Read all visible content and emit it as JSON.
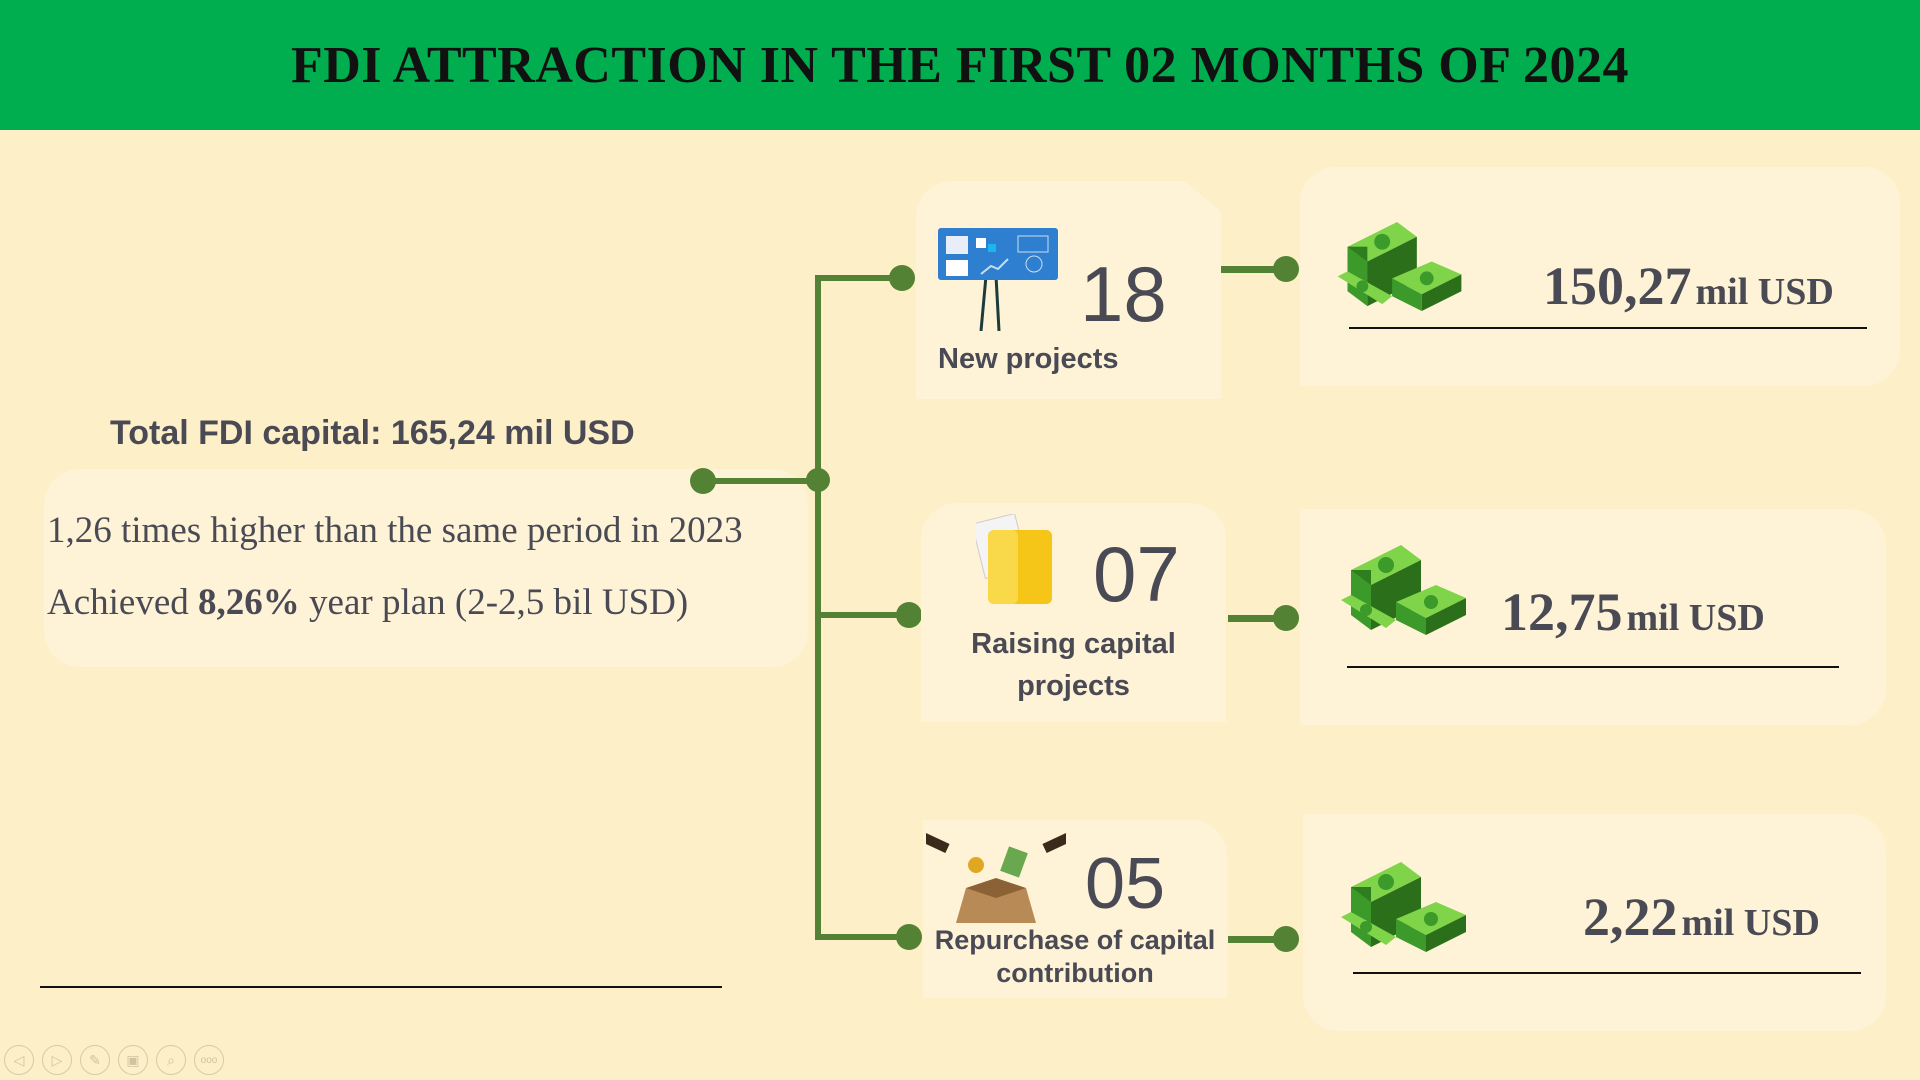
{
  "header": {
    "title": "FDI ATTRACTION IN THE FIRST 02 MONTHS OF 2024"
  },
  "summary": {
    "total_label": "Total FDI capital: 165,24 mil USD",
    "line1": "1,26 times higher than the same period in 2023",
    "line2_pre": "Achieved ",
    "line2_bold": "8,26%",
    "line2_post": " year plan (2-2,5 bil USD)"
  },
  "categories": [
    {
      "count": "18",
      "label": "New projects",
      "value": "150,27",
      "unit": "mil USD",
      "icon": "presentation-board-icon"
    },
    {
      "count": "07",
      "label": "Raising capital projects",
      "value": "12,75",
      "unit": "mil USD",
      "icon": "folder-icon"
    },
    {
      "count": "05",
      "label": "Repurchase of capital contribution",
      "value": "2,22",
      "unit": "mil USD",
      "icon": "investment-box-icon"
    }
  ],
  "colors": {
    "header": "#00ae4f",
    "background": "#fdefc7",
    "connector": "#548235",
    "card": "#fef3d6"
  },
  "slideshow_controls": [
    "previous-icon",
    "next-icon",
    "pen-icon",
    "slides-icon",
    "zoom-icon",
    "more-icon"
  ]
}
